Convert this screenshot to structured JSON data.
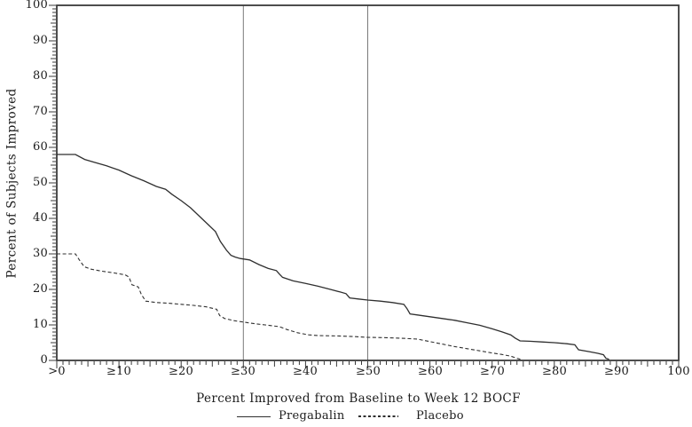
{
  "colors": {
    "background": "#ffffff",
    "axis": "#3a3a3a",
    "line": "#2f2f2f",
    "reference": "#7a7a7a",
    "text": "#1c1c1c"
  },
  "chart_data": {
    "type": "line",
    "title": "",
    "xlabel": "Percent Improved from Baseline to Week 12 BOCF",
    "ylabel": "Percent of Subjects Improved",
    "xlim": [
      0,
      100
    ],
    "ylim": [
      0,
      100
    ],
    "grid": false,
    "minor_tick_step": 1,
    "legend_position": "bottom",
    "reference_lines_x": [
      30,
      50
    ],
    "x_tick_values": [
      0,
      10,
      20,
      30,
      40,
      50,
      60,
      70,
      80,
      90,
      100
    ],
    "x_tick_labels": [
      ">0",
      "≥10",
      "≥20",
      "≥30",
      "≥40",
      "≥50",
      "≥60",
      "≥70",
      "≥80",
      "≥90",
      "100"
    ],
    "y_tick_values": [
      0,
      10,
      20,
      30,
      40,
      50,
      60,
      70,
      80,
      90,
      100
    ],
    "y_tick_labels": [
      "0",
      "10",
      "20",
      "30",
      "40",
      "50",
      "60",
      "70",
      "80",
      "90",
      "100"
    ],
    "legend": [
      {
        "label": "Pregabalin",
        "line_style": "solid"
      },
      {
        "label": "Placebo",
        "line_style": "dashed"
      }
    ],
    "series": [
      {
        "name": "Pregabalin",
        "line_style": "solid",
        "points": [
          [
            0,
            58
          ],
          [
            3,
            58
          ],
          [
            4.5,
            56.6
          ],
          [
            6,
            55.8
          ],
          [
            8,
            54.8
          ],
          [
            10,
            53.6
          ],
          [
            12,
            52
          ],
          [
            14,
            50.6
          ],
          [
            16,
            49
          ],
          [
            17.5,
            48.2
          ],
          [
            18.5,
            46.8
          ],
          [
            20,
            45
          ],
          [
            21.5,
            43
          ],
          [
            23,
            40.5
          ],
          [
            24.5,
            38
          ],
          [
            25.5,
            36.3
          ],
          [
            26.3,
            33.5
          ],
          [
            27.3,
            31
          ],
          [
            28,
            29.6
          ],
          [
            28.7,
            29.1
          ],
          [
            29.5,
            28.7
          ],
          [
            31,
            28.3
          ],
          [
            32.5,
            27
          ],
          [
            34,
            25.9
          ],
          [
            35.3,
            25.3
          ],
          [
            35.8,
            24.3
          ],
          [
            36.3,
            23.4
          ],
          [
            38,
            22.4
          ],
          [
            40,
            21.7
          ],
          [
            42,
            20.9
          ],
          [
            44,
            20
          ],
          [
            45.5,
            19.3
          ],
          [
            46.5,
            18.8
          ],
          [
            47.1,
            17.6
          ],
          [
            48.5,
            17.3
          ],
          [
            50,
            17
          ],
          [
            52,
            16.7
          ],
          [
            54,
            16.3
          ],
          [
            55.8,
            15.8
          ],
          [
            56.3,
            14.6
          ],
          [
            56.8,
            13.1
          ],
          [
            58,
            12.8
          ],
          [
            60,
            12.3
          ],
          [
            62,
            11.8
          ],
          [
            64,
            11.3
          ],
          [
            66,
            10.6
          ],
          [
            68,
            9.9
          ],
          [
            70,
            8.9
          ],
          [
            71.5,
            8.1
          ],
          [
            73,
            7.2
          ],
          [
            73.7,
            6.3
          ],
          [
            74.5,
            5.5
          ],
          [
            76,
            5.4
          ],
          [
            78,
            5.2
          ],
          [
            80,
            5
          ],
          [
            82,
            4.7
          ],
          [
            83.3,
            4.4
          ],
          [
            83.9,
            3
          ],
          [
            85.5,
            2.5
          ],
          [
            87,
            2
          ],
          [
            87.9,
            1.6
          ],
          [
            88.3,
            0.6
          ],
          [
            88.8,
            0.3
          ]
        ]
      },
      {
        "name": "Placebo",
        "line_style": "dashed",
        "points": [
          [
            0,
            30
          ],
          [
            3,
            30
          ],
          [
            3.6,
            28.4
          ],
          [
            4.4,
            26.4
          ],
          [
            5.5,
            25.7
          ],
          [
            7,
            25.2
          ],
          [
            9,
            24.7
          ],
          [
            11,
            24.1
          ],
          [
            11.6,
            23.5
          ],
          [
            12.1,
            21.3
          ],
          [
            13.1,
            20.7
          ],
          [
            13.6,
            18.6
          ],
          [
            14.3,
            16.7
          ],
          [
            16,
            16.3
          ],
          [
            18,
            16.1
          ],
          [
            20,
            15.8
          ],
          [
            22,
            15.5
          ],
          [
            24,
            15.1
          ],
          [
            25.7,
            14.4
          ],
          [
            26.2,
            12.6
          ],
          [
            27,
            11.8
          ],
          [
            28.5,
            11.2
          ],
          [
            30,
            10.8
          ],
          [
            32,
            10.3
          ],
          [
            34,
            9.9
          ],
          [
            35.8,
            9.5
          ],
          [
            37,
            8.7
          ],
          [
            38.7,
            7.8
          ],
          [
            40.5,
            7.2
          ],
          [
            42,
            7
          ],
          [
            45,
            6.9
          ],
          [
            48,
            6.7
          ],
          [
            50,
            6.5
          ],
          [
            53,
            6.4
          ],
          [
            56,
            6.2
          ],
          [
            58,
            6
          ],
          [
            60,
            5.3
          ],
          [
            62,
            4.6
          ],
          [
            64,
            3.9
          ],
          [
            66,
            3.3
          ],
          [
            68,
            2.7
          ],
          [
            70,
            2.1
          ],
          [
            71.5,
            1.7
          ],
          [
            73,
            1.2
          ],
          [
            74,
            0.6
          ],
          [
            74.8,
            0.2
          ]
        ]
      }
    ]
  }
}
